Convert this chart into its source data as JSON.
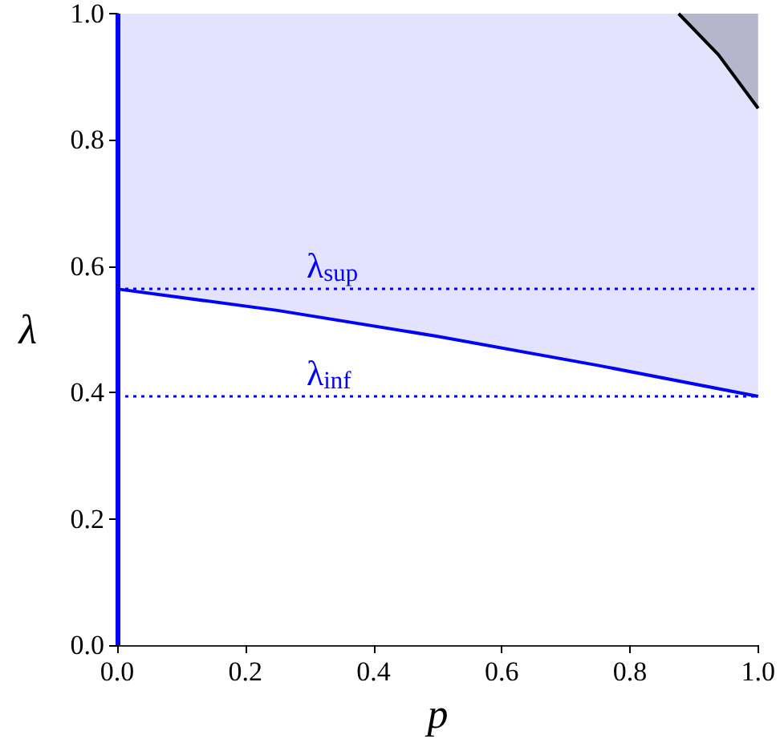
{
  "chart_data": {
    "type": "line",
    "xlabel": "p",
    "ylabel": "λ",
    "xlim": [
      0,
      1
    ],
    "ylim": [
      0,
      1
    ],
    "xticks": [
      {
        "value": 0,
        "label": "0.0"
      },
      {
        "value": 0.2,
        "label": "0.2"
      },
      {
        "value": 0.4,
        "label": "0.4"
      },
      {
        "value": 0.6,
        "label": "0.6"
      },
      {
        "value": 0.8,
        "label": "0.8"
      },
      {
        "value": 1,
        "label": "1.0"
      }
    ],
    "yticks": [
      {
        "value": 0,
        "label": "0.0"
      },
      {
        "value": 0.2,
        "label": "0.2"
      },
      {
        "value": 0.4,
        "label": "0.4"
      },
      {
        "value": 0.6,
        "label": "0.6"
      },
      {
        "value": 0.8,
        "label": "0.8"
      },
      {
        "value": 1,
        "label": "1.0"
      }
    ],
    "series": [
      {
        "color": "#0000ff",
        "x": [
          0,
          0.25,
          0.5,
          0.75,
          1
        ],
        "values": [
          0.564,
          0.53,
          0.489,
          0.443,
          0.394
        ],
        "lower": [
          0.564,
          0.53,
          0.489,
          0.443,
          0.394
        ],
        "upper": [
          1,
          1,
          1,
          1,
          1
        ]
      },
      {
        "color": "#000000",
        "x": [
          0.876,
          0.938,
          1
        ],
        "values": [
          1,
          0.935,
          0.85
        ],
        "lower": [
          1,
          0.935,
          0.85
        ],
        "upper": [
          1,
          1,
          1
        ]
      }
    ],
    "ref_lines": [
      {
        "axis": "x",
        "value": 0,
        "color": "#0000ff",
        "line_style": "solid"
      },
      {
        "axis": "y",
        "value": 0.564,
        "label": "λ$_{sup}$",
        "color": "#0000ff",
        "line_style": "dotted"
      },
      {
        "axis": "y",
        "value": 0.394,
        "label": "λ$_{inf}$",
        "color": "#0000ff",
        "line_style": "dotted"
      }
    ]
  }
}
